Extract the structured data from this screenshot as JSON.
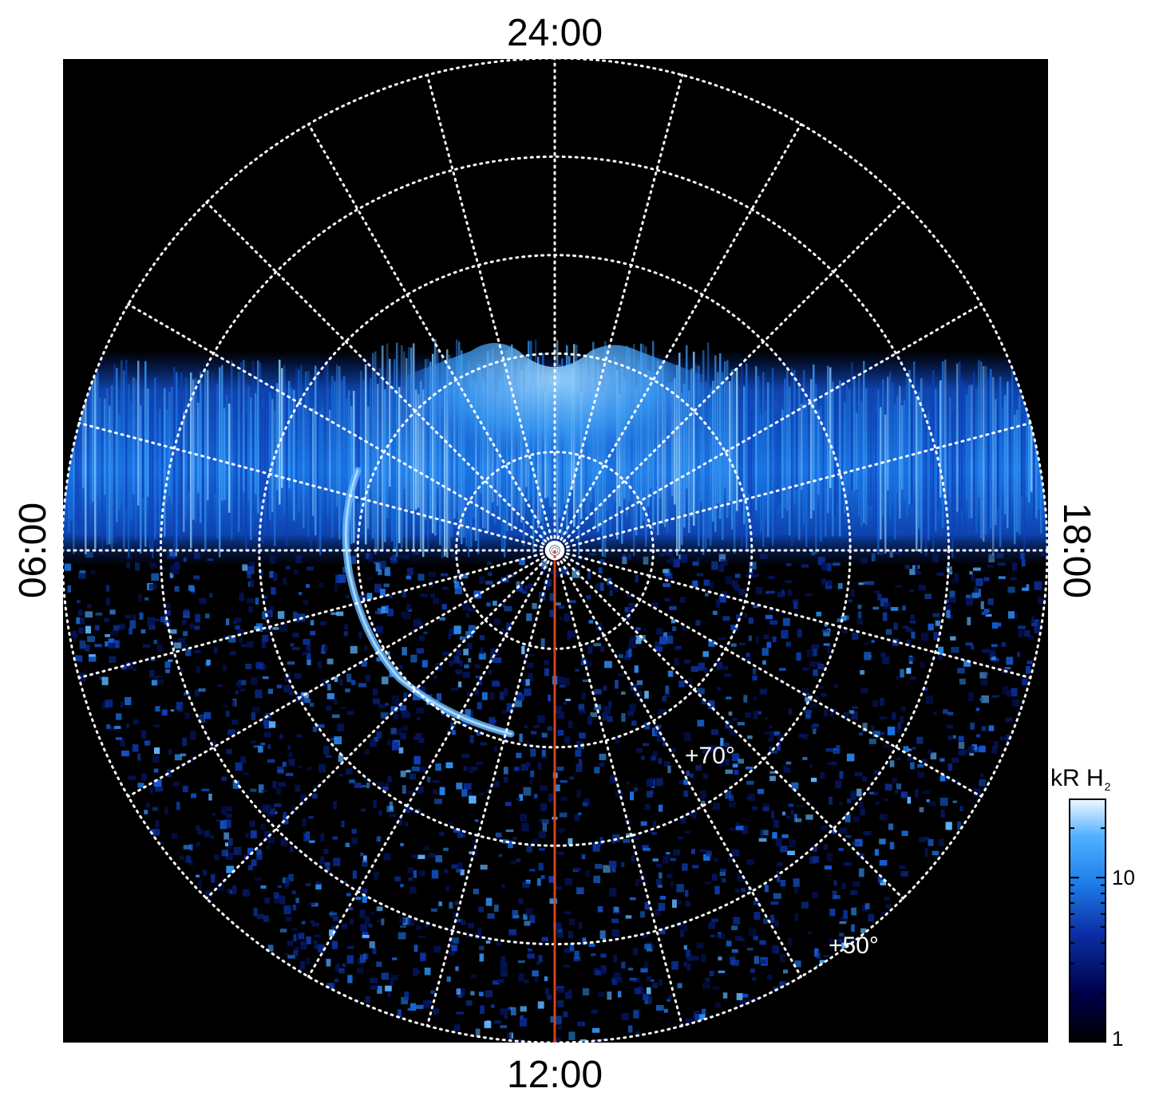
{
  "projection": {
    "local_time_labels": {
      "top": "24:00",
      "bottom": "12:00",
      "left": "06:00",
      "right": "18:00"
    },
    "latitude_labels": [
      {
        "text": "+70°",
        "latitude": 70
      },
      {
        "text": "+50°",
        "latitude": 50
      }
    ],
    "meridian_spacing_hours": 1,
    "latitude_circle_spacing_deg": 10
  },
  "colorbar": {
    "title_main": "kR H",
    "title_sub": "2",
    "tick_labels": [
      "10",
      "1"
    ],
    "scale": "log",
    "range": [
      1,
      30
    ],
    "gradient": [
      "#000000",
      "#00004a",
      "#0a2fa6",
      "#1e7ce8",
      "#52b2ff",
      "#f2f8ff"
    ]
  },
  "colors": {
    "background": "#000000",
    "grid": "#ffffff",
    "noon_meridian": "#d2431e",
    "emission_dim": "#0a2f9e",
    "emission_mid": "#1a70e0",
    "emission_bright": "#8fd0ff"
  }
}
